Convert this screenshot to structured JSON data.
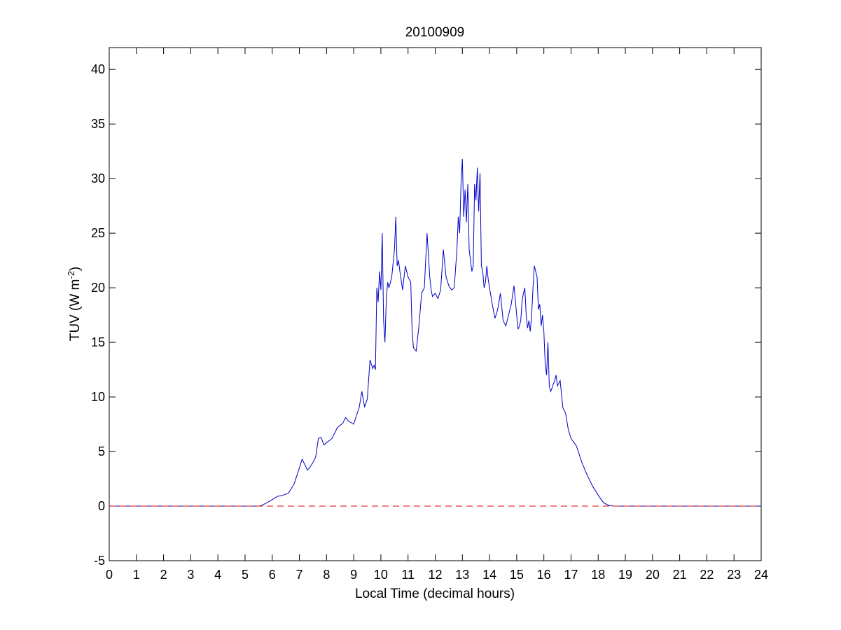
{
  "chart_data": {
    "type": "line",
    "title": "20100909",
    "xlabel": "Local Time (decimal hours)",
    "ylabel_main": "TUV (W m",
    "ylabel_sup": "-2",
    "ylabel_close": ")",
    "xlim": [
      0,
      24
    ],
    "ylim": [
      -5,
      42
    ],
    "xticks": [
      0,
      1,
      2,
      3,
      4,
      5,
      6,
      7,
      8,
      9,
      10,
      11,
      12,
      13,
      14,
      15,
      16,
      17,
      18,
      19,
      20,
      21,
      22,
      23,
      24
    ],
    "yticks": [
      -5,
      0,
      5,
      10,
      15,
      20,
      25,
      30,
      35,
      40
    ],
    "grid": false,
    "colors": {
      "series": "#0000c8",
      "reference": "#e00000"
    },
    "series": [
      {
        "style": "solid",
        "x": [
          0,
          5.5,
          5.6,
          5.8,
          6.0,
          6.2,
          6.4,
          6.6,
          6.8,
          7.0,
          7.1,
          7.2,
          7.3,
          7.4,
          7.5,
          7.6,
          7.7,
          7.8,
          7.9,
          8.0,
          8.2,
          8.4,
          8.6,
          8.7,
          8.8,
          9.0,
          9.1,
          9.2,
          9.3,
          9.4,
          9.5,
          9.6,
          9.7,
          9.75,
          9.8,
          9.85,
          9.9,
          9.95,
          10.0,
          10.05,
          10.1,
          10.15,
          10.2,
          10.25,
          10.3,
          10.4,
          10.5,
          10.55,
          10.6,
          10.65,
          10.7,
          10.8,
          10.9,
          11.0,
          11.1,
          11.15,
          11.2,
          11.3,
          11.4,
          11.5,
          11.6,
          11.7,
          11.8,
          11.85,
          11.9,
          12.0,
          12.1,
          12.2,
          12.3,
          12.4,
          12.5,
          12.6,
          12.7,
          12.8,
          12.85,
          12.9,
          12.95,
          13.0,
          13.05,
          13.1,
          13.15,
          13.2,
          13.25,
          13.3,
          13.35,
          13.4,
          13.45,
          13.5,
          13.55,
          13.6,
          13.65,
          13.7,
          13.75,
          13.8,
          13.85,
          13.9,
          13.95,
          14.0,
          14.1,
          14.2,
          14.3,
          14.4,
          14.5,
          14.6,
          14.7,
          14.8,
          14.9,
          15.0,
          15.05,
          15.1,
          15.15,
          15.2,
          15.25,
          15.3,
          15.35,
          15.4,
          15.45,
          15.5,
          15.55,
          15.6,
          15.65,
          15.7,
          15.75,
          15.8,
          15.85,
          15.9,
          15.95,
          16.0,
          16.05,
          16.1,
          16.15,
          16.2,
          16.25,
          16.3,
          16.35,
          16.4,
          16.45,
          16.5,
          16.6,
          16.7,
          16.8,
          16.9,
          17.0,
          17.2,
          17.4,
          17.6,
          17.8,
          18.0,
          18.2,
          18.4,
          18.6,
          18.7,
          24
        ],
        "y": [
          0,
          0,
          0.05,
          0.3,
          0.6,
          0.9,
          1.0,
          1.2,
          2.0,
          3.5,
          4.3,
          3.8,
          3.3,
          3.6,
          4.0,
          4.5,
          6.2,
          6.3,
          5.6,
          5.8,
          6.2,
          7.2,
          7.6,
          8.1,
          7.8,
          7.5,
          8.3,
          9.0,
          10.5,
          9.1,
          9.8,
          13.4,
          12.6,
          12.9,
          12.5,
          20.0,
          18.7,
          21.5,
          19.8,
          25.0,
          17.0,
          15.0,
          19.0,
          20.5,
          20.0,
          21.0,
          23.5,
          26.5,
          22.0,
          22.5,
          21.5,
          19.8,
          22.0,
          21.0,
          20.5,
          16.0,
          14.5,
          14.2,
          16.5,
          19.5,
          20.0,
          25.0,
          21.0,
          19.8,
          19.2,
          19.5,
          19.0,
          19.8,
          23.5,
          21.0,
          20.2,
          19.8,
          20.0,
          23.5,
          26.5,
          25.0,
          29.5,
          31.8,
          26.5,
          29.0,
          26.0,
          29.5,
          23.5,
          22.5,
          21.5,
          22.0,
          29.5,
          28.0,
          31.0,
          27.0,
          30.5,
          22.0,
          21.5,
          20.0,
          20.5,
          22.0,
          20.8,
          20.0,
          18.5,
          17.2,
          18.0,
          19.5,
          17.0,
          16.5,
          17.5,
          18.5,
          20.2,
          17.5,
          16.2,
          16.5,
          17.0,
          18.8,
          19.5,
          20.0,
          17.5,
          16.3,
          17.0,
          16.0,
          17.5,
          20.0,
          22.0,
          21.5,
          21.0,
          18.0,
          18.5,
          16.5,
          17.5,
          16.0,
          13.0,
          12.0,
          15.0,
          11.0,
          10.5,
          10.8,
          11.2,
          11.5,
          12.0,
          11.0,
          11.5,
          9.0,
          8.5,
          7.0,
          6.2,
          5.5,
          4.0,
          2.8,
          1.8,
          1.0,
          0.3,
          0.05,
          0,
          0,
          0
        ]
      },
      {
        "style": "dashed",
        "x": [
          0,
          24
        ],
        "y": [
          0,
          0
        ]
      }
    ]
  }
}
